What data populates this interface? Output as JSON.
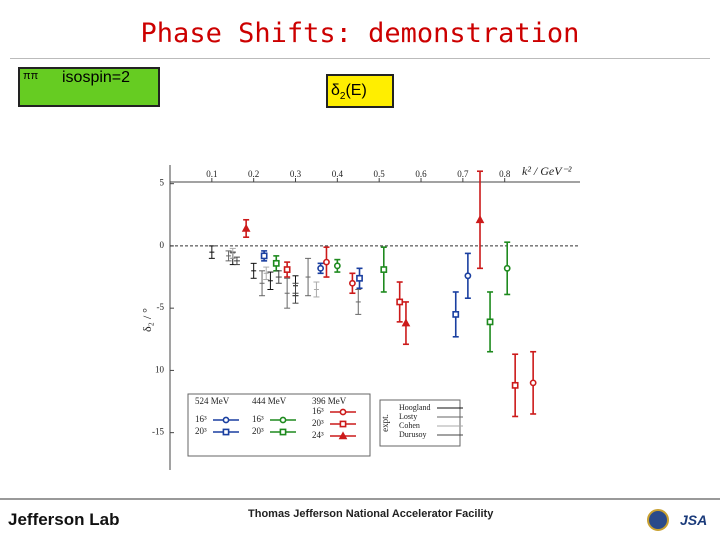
{
  "header": {
    "title": "Phase Shifts: demonstration"
  },
  "box_left": {
    "symbol": "ππ",
    "label": "isospin=2"
  },
  "box_right": {
    "symbol": "δ",
    "subscript": "2",
    "suffix": "(E)"
  },
  "footer": {
    "left": "Jefferson Lab",
    "center": "Thomas Jefferson National Accelerator Facility",
    "right": "JSA"
  },
  "chart_data": {
    "type": "scatter",
    "x_label": "k² / GeV⁻²",
    "y_label": "δ₂ / °",
    "xlim": [
      0,
      0.98
    ],
    "ylim": [
      -18,
      6.5
    ],
    "xticks": [
      0.1,
      0.2,
      0.3,
      0.4,
      0.5,
      0.6,
      0.7,
      0.8
    ],
    "yticks": [
      5,
      0,
      -5,
      {
        "value": -10,
        "label": "10"
      },
      -15
    ],
    "zero_line": true,
    "groups": [
      {
        "title": "524 MeV",
        "series": [
          {
            "name": "16³",
            "color": "#1a3fa0",
            "marker": "circle",
            "x": [
              0.36,
              0.712
            ],
            "values": [
              -1.8,
              -2.4
            ],
            "errors": [
              0.4,
              1.8
            ]
          },
          {
            "name": "20³",
            "color": "#1a3fa0",
            "marker": "square",
            "x": [
              0.225,
              0.453,
              0.683
            ],
            "values": [
              -0.8,
              -2.6,
              -5.5
            ],
            "errors": [
              0.4,
              0.8,
              1.8
            ]
          }
        ]
      },
      {
        "title": "444 MeV",
        "series": [
          {
            "name": "16³",
            "color": "#1e8a1e",
            "marker": "circle",
            "x": [
              0.4,
              0.806
            ],
            "values": [
              -1.6,
              -1.8
            ],
            "errors": [
              0.5,
              2.1
            ]
          },
          {
            "name": "20³",
            "color": "#1e8a1e",
            "marker": "square",
            "x": [
              0.254,
              0.511,
              0.765
            ],
            "values": [
              -1.4,
              -1.9,
              -6.1
            ],
            "errors": [
              0.6,
              1.8,
              2.4
            ]
          }
        ]
      },
      {
        "title": "396 MeV",
        "series": [
          {
            "name": "16³",
            "color": "#cc1a1a",
            "marker": "circle",
            "x": [
              0.374,
              0.436,
              0.868
            ],
            "values": [
              -1.3,
              -3.0,
              -11.0
            ],
            "errors": [
              1.2,
              0.8,
              2.5
            ]
          },
          {
            "name": "20³",
            "color": "#cc1a1a",
            "marker": "square",
            "x": [
              0.28,
              0.549,
              0.825
            ],
            "values": [
              -1.9,
              -4.5,
              -11.2
            ],
            "errors": [
              0.6,
              1.6,
              2.5
            ]
          },
          {
            "name": "24³",
            "color": "#cc1a1a",
            "marker": "triangle",
            "x": [
              0.182,
              0.564,
              0.741
            ],
            "values": [
              1.4,
              -6.2,
              2.1
            ],
            "errors": [
              0.7,
              1.7,
              3.9
            ]
          }
        ]
      },
      {
        "title": "expt.",
        "series": [
          {
            "name": "Hoogland",
            "color": "#111111",
            "marker": "plus",
            "x": [
              0.1,
              0.15,
              0.2,
              0.24,
              0.3
            ],
            "values": [
              -0.5,
              -1.0,
              -2.0,
              -2.8,
              -3.2
            ],
            "errors": [
              0.5,
              0.5,
              0.6,
              0.7,
              0.8
            ]
          },
          {
            "name": "Losty",
            "color": "#666666",
            "marker": "plus",
            "x": [
              0.14,
              0.22,
              0.28,
              0.33,
              0.45
            ],
            "values": [
              -0.8,
              -3.0,
              -3.8,
              -2.5,
              -4.5
            ],
            "errors": [
              0.4,
              1.0,
              1.2,
              1.5,
              1.0
            ]
          },
          {
            "name": "Cohen",
            "color": "#aaaaaa",
            "marker": "plus",
            "x": [
              0.15,
              0.23,
              0.35
            ],
            "values": [
              -0.6,
              -2.2,
              -3.5
            ],
            "errors": [
              0.4,
              0.5,
              0.6
            ]
          },
          {
            "name": "Durusoy",
            "color": "#444444",
            "marker": "dash",
            "x": [
              0.16,
              0.26,
              0.3
            ],
            "values": [
              -1.2,
              -2.5,
              -3.8
            ],
            "errors": [
              0.3,
              0.5,
              0.8
            ]
          }
        ]
      }
    ]
  }
}
